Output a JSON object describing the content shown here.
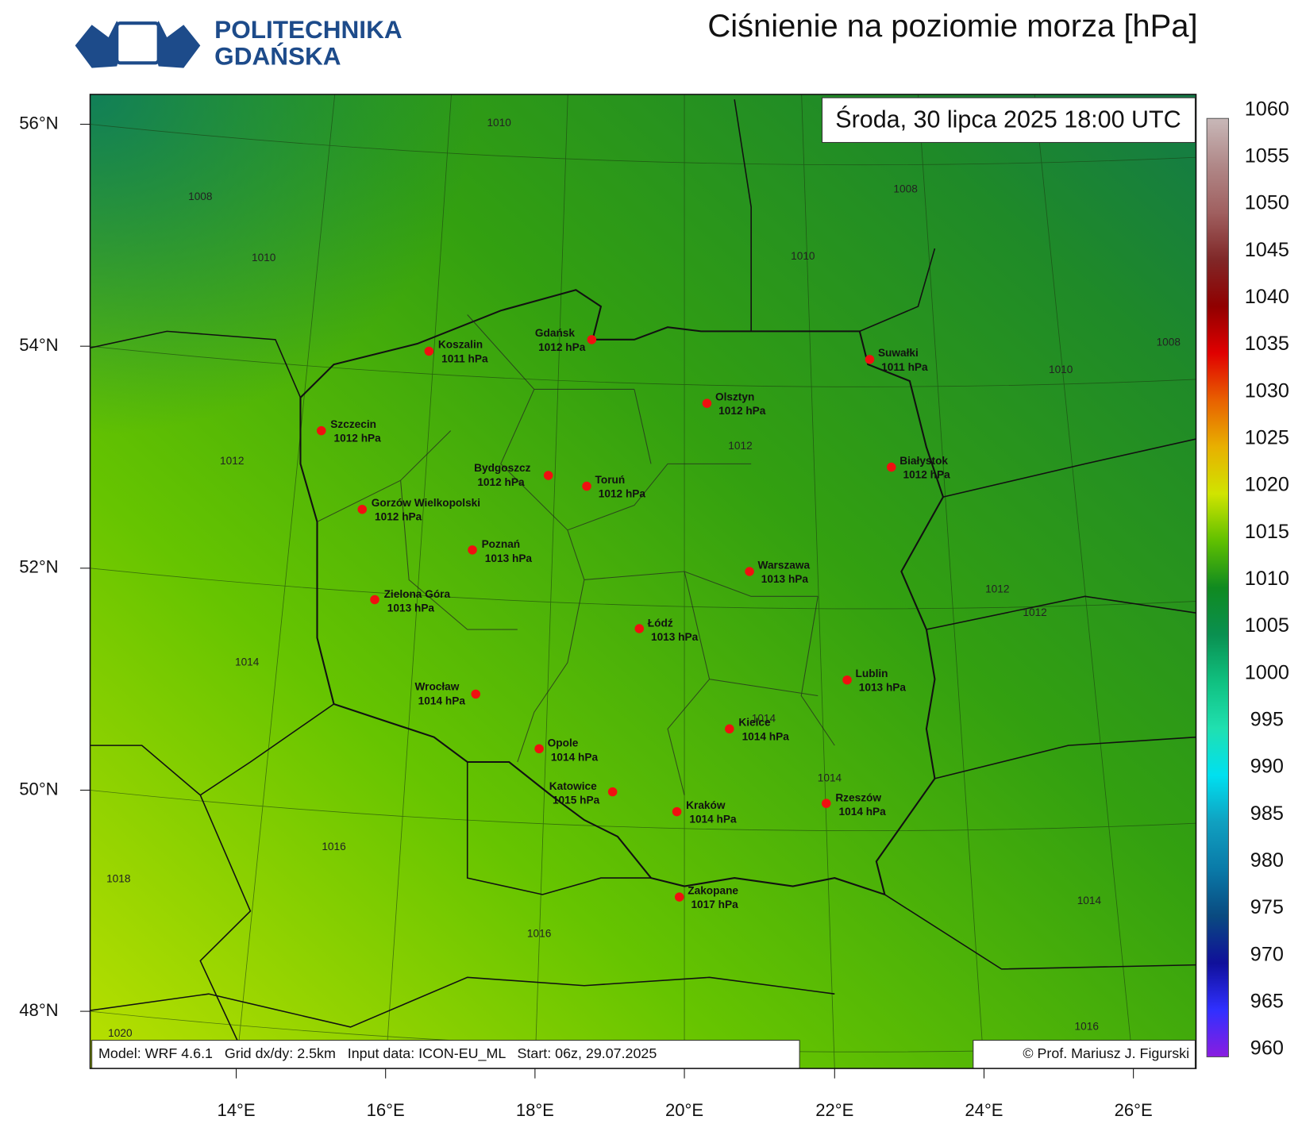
{
  "header": {
    "logo_line1": "POLITECHNIKA",
    "logo_line2": "GDAŃSKA",
    "title": "Ciśnienie na poziomie morza [hPa]"
  },
  "map": {
    "valid_time": "Środa, 30 lipca 2025 18:00 UTC",
    "cities": [
      {
        "name": "Koszalin",
        "pressure": "1011 hPa"
      },
      {
        "name": "Gdańsk",
        "pressure": "1012 hPa"
      },
      {
        "name": "Suwałki",
        "pressure": "1011 hPa"
      },
      {
        "name": "Olsztyn",
        "pressure": "1012 hPa"
      },
      {
        "name": "Szczecin",
        "pressure": "1012 hPa"
      },
      {
        "name": "Białystok",
        "pressure": "1012 hPa"
      },
      {
        "name": "Bydgoszcz",
        "pressure": "1012 hPa"
      },
      {
        "name": "Toruń",
        "pressure": "1012 hPa"
      },
      {
        "name": "Gorzów Wielkopolski",
        "pressure": "1012 hPa"
      },
      {
        "name": "Poznań",
        "pressure": "1013 hPa"
      },
      {
        "name": "Warszawa",
        "pressure": "1013 hPa"
      },
      {
        "name": "Zielona Góra",
        "pressure": "1013 hPa"
      },
      {
        "name": "Łódź",
        "pressure": "1013 hPa"
      },
      {
        "name": "Lublin",
        "pressure": "1013 hPa"
      },
      {
        "name": "Wrocław",
        "pressure": "1014 hPa"
      },
      {
        "name": "Kielce",
        "pressure": "1014 hPa"
      },
      {
        "name": "Opole",
        "pressure": "1014 hPa"
      },
      {
        "name": "Katowice",
        "pressure": "1015 hPa"
      },
      {
        "name": "Rzeszów",
        "pressure": "1014 hPa"
      },
      {
        "name": "Kraków",
        "pressure": "1014 hPa"
      },
      {
        "name": "Zakopane",
        "pressure": "1017 hPa"
      }
    ],
    "contour_labels": [
      1010,
      1008,
      1008,
      1010,
      1010,
      1008,
      1010,
      1012,
      1012,
      1012,
      1012,
      1014,
      1014,
      1014,
      1016,
      1018,
      1014,
      1016,
      1020,
      1016
    ],
    "lat_labels": [
      "56°N",
      "54°N",
      "52°N",
      "50°N",
      "48°N"
    ],
    "lon_labels": [
      "14°E",
      "16°E",
      "18°E",
      "20°E",
      "22°E",
      "24°E",
      "26°E"
    ],
    "footer_left": "Model: WRF 4.6.1   Grid dx/dy: 2.5km   Input data: ICON-EU_ML   Start: 06z, 29.07.2025",
    "footer_right": "© Prof. Mariusz J. Figurski"
  },
  "colorbar": {
    "ticks": [
      960,
      965,
      970,
      975,
      980,
      985,
      990,
      995,
      1000,
      1005,
      1010,
      1015,
      1020,
      1025,
      1030,
      1035,
      1040,
      1045,
      1050,
      1055,
      1060
    ]
  }
}
